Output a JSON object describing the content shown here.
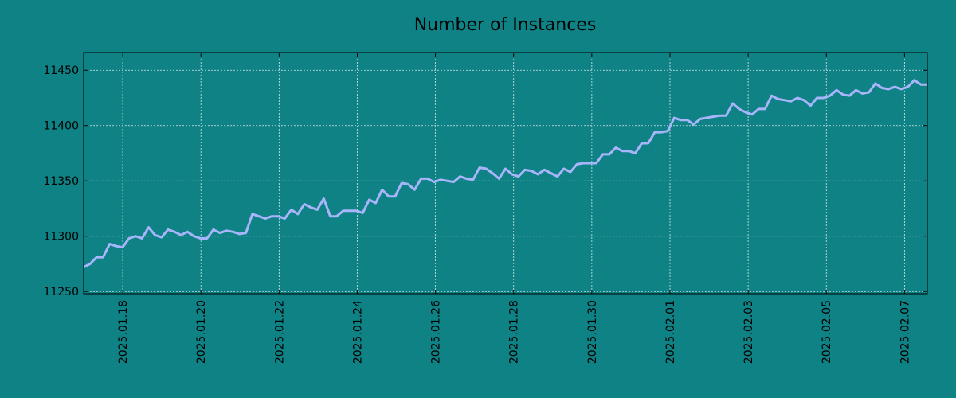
{
  "chart_data": {
    "type": "line",
    "title": "Number of Instances",
    "xlabel": "",
    "ylabel": "",
    "x_start": "2025-01-17",
    "x_end": "2025-02-07 14:00",
    "xlim": [
      "2025-01-17",
      "2025-02-07 14:00"
    ],
    "ylim": [
      11248,
      11466
    ],
    "yticks": [
      11250,
      11300,
      11350,
      11400,
      11450
    ],
    "xticks": [
      "2025.01.18",
      "2025.01.20",
      "2025.01.22",
      "2025.01.24",
      "2025.01.26",
      "2025.01.28",
      "2025.01.30",
      "2025.02.01",
      "2025.02.03",
      "2025.02.05",
      "2025.02.07"
    ],
    "grid": true,
    "series": [
      {
        "color": "#a9b5fb",
        "values": [
          11272,
          11275,
          11281,
          11281,
          11293,
          11291,
          11290,
          11298,
          11300,
          11298,
          11308,
          11301,
          11299,
          11306,
          11304,
          11301,
          11304,
          11300,
          11298,
          11298,
          11306,
          11303,
          11305,
          11304,
          11302,
          11303,
          11320,
          11318,
          11316,
          11318,
          11318,
          11316,
          11324,
          11320,
          11329,
          11326,
          11324,
          11334,
          11318,
          11318,
          11323,
          11323,
          11323,
          11321,
          11333,
          11330,
          11342,
          11336,
          11336,
          11348,
          11347,
          11342,
          11352,
          11352,
          11349,
          11351,
          11350,
          11349,
          11354,
          11352,
          11351,
          11362,
          11361,
          11357,
          11352,
          11361,
          11356,
          11354,
          11360,
          11359,
          11356,
          11360,
          11357,
          11354,
          11361,
          11358,
          11365,
          11366,
          11366,
          11366,
          11374,
          11374,
          11380,
          11377,
          11377,
          11375,
          11384,
          11384,
          11394,
          11394,
          11395,
          11407,
          11405,
          11405,
          11401,
          11406,
          11407,
          11408,
          11409,
          11409,
          11420,
          11415,
          11412,
          11410,
          11415,
          11415,
          11427,
          11424,
          11423,
          11422,
          11425,
          11423,
          11418,
          11425,
          11425,
          11427,
          11432,
          11428,
          11427,
          11432,
          11429,
          11430,
          11438,
          11434,
          11433,
          11435,
          11433,
          11435,
          11441,
          11437,
          11437
        ]
      }
    ]
  }
}
